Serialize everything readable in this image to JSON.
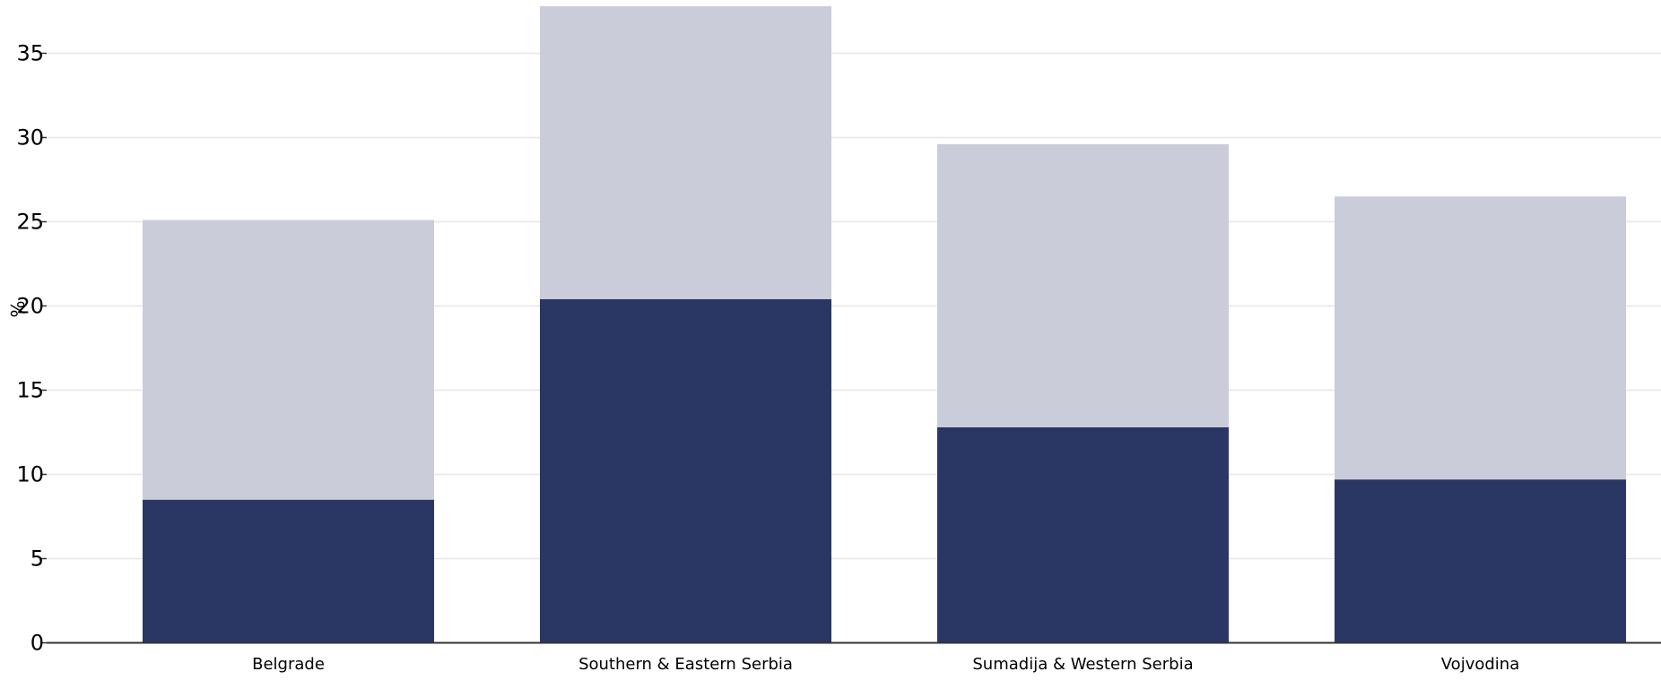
{
  "chart_data": {
    "type": "bar",
    "stacked": true,
    "categories": [
      "Belgrade",
      "Southern & Eastern Serbia",
      "Sumadija & Western Serbia",
      "Vojvodina"
    ],
    "series": [
      {
        "values": [
          8.5,
          20.4,
          12.8,
          9.7
        ],
        "color": "#2a3765"
      },
      {
        "values": [
          16.6,
          17.4,
          16.8,
          16.8
        ],
        "color": "#cbccd9"
      }
    ],
    "totals": [
      25.1,
      37.8,
      29.6,
      26.5
    ],
    "title": "",
    "xlabel": "",
    "ylabel": "%",
    "ylim": [
      0,
      37.5
    ],
    "yticks": [
      0,
      5,
      10,
      15,
      20,
      25,
      30,
      35
    ],
    "grid": true,
    "legend": "none"
  }
}
